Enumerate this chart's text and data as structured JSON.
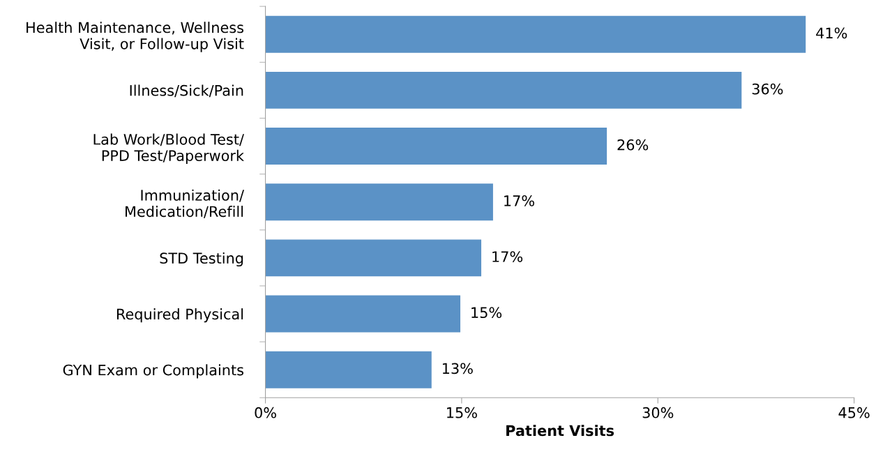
{
  "chart_data": {
    "type": "bar",
    "orientation": "horizontal",
    "xlabel": "Patient Visits",
    "categories": [
      "Health Maintenance, Wellness\nVisit, or Follow-up Visit",
      "Illness/Sick/Pain",
      "Lab Work/Blood Test/\nPPD Test/Paperwork",
      "Immunization/\nMedication/Refill",
      "STD Testing",
      "Required Physical",
      "GYN Exam or Complaints"
    ],
    "values": [
      41.3,
      36.4,
      26.1,
      17.4,
      16.5,
      14.9,
      12.7
    ],
    "value_labels": [
      "41%",
      "36%",
      "26%",
      "17%",
      "17%",
      "15%",
      "13%"
    ],
    "color": "#5b92c6",
    "xlim": [
      0,
      45
    ],
    "xticks": [
      {
        "value": 0,
        "label": "0%"
      },
      {
        "value": 15,
        "label": "15%"
      },
      {
        "value": 30,
        "label": "30%"
      },
      {
        "value": 45,
        "label": "45%"
      }
    ],
    "grid": false,
    "legend": false
  }
}
